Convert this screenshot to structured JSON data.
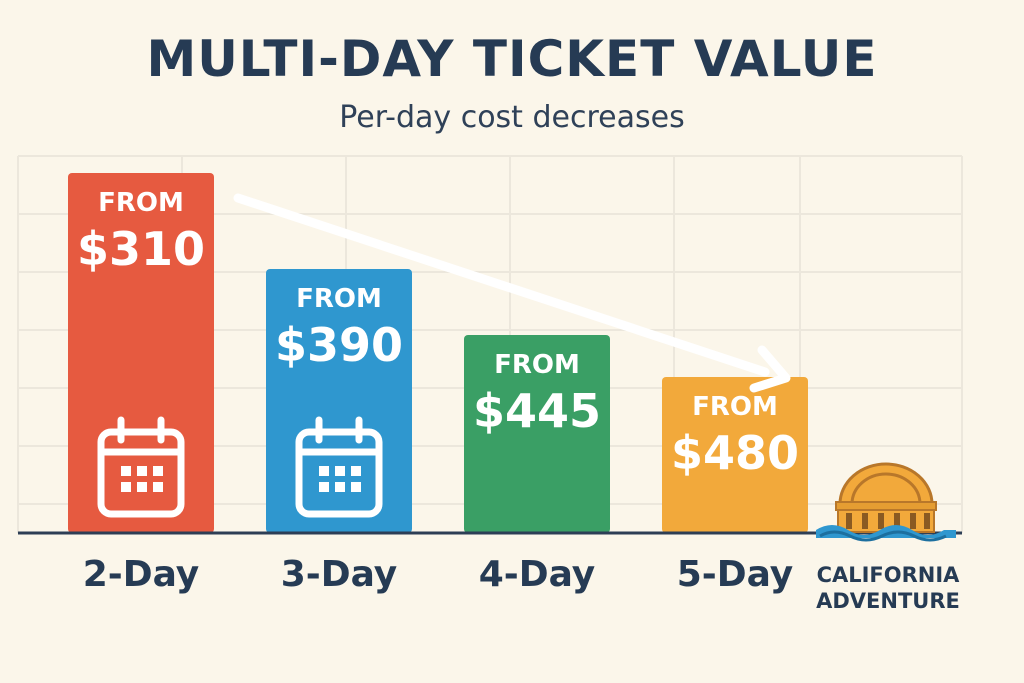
{
  "title": "MULTI-DAY TICKET VALUE",
  "subtitle": "Per-day cost decreases",
  "brand": {
    "line1": "CALIFORNIA",
    "line2": "ADVENTURE"
  },
  "icons": {
    "calendar": "calendar-icon",
    "logo": "dome-logo-icon",
    "arrow": "trend-arrow-icon"
  },
  "chart_data": {
    "type": "bar",
    "categories": [
      "2-Day",
      "3-Day",
      "4-Day",
      "5-Day"
    ],
    "values": [
      310,
      390,
      445,
      480
    ],
    "value_prefix": "FROM",
    "value_labels": [
      "$310",
      "$390",
      "$445",
      "$480"
    ],
    "colors": [
      "#e65a40",
      "#2f97cf",
      "#3a9f65",
      "#f2a93b"
    ],
    "calendar_icon_on": [
      true,
      true,
      false,
      false
    ],
    "grid": true,
    "annotation": "downward trend arrow"
  }
}
